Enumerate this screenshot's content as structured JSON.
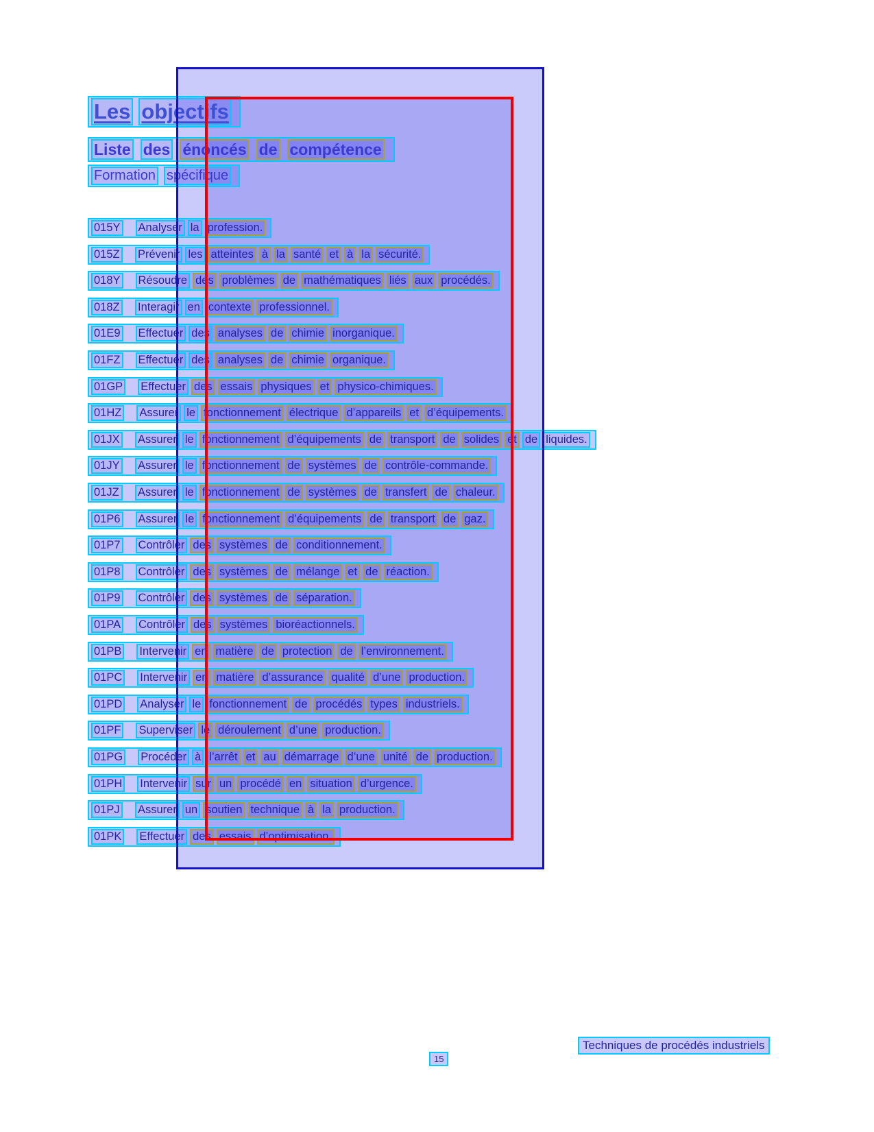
{
  "colors": {
    "page_bg": "#ffffff",
    "body_text": "#24249a",
    "title_text": "#3f4fd2",
    "heading_text": "#3a3ace",
    "footer_text": "#24249a",
    "blue_region_border": "#1111cc",
    "red_region_border": "#ee0000",
    "line_box_border": "#00ccff",
    "word_box_border": "#a6a235"
  },
  "title": {
    "text": "Les objectifs"
  },
  "headings": {
    "competences": "Liste des énoncés de compétence",
    "formation": "Formation spécifique"
  },
  "list": {
    "items": [
      {
        "code": "015Y",
        "text": "Analyser la profession."
      },
      {
        "code": "015Z",
        "text": "Prévenir les atteintes à la santé et à la sécurité."
      },
      {
        "code": "018Y",
        "text": "Résoudre des problèmes de mathématiques liés aux procédés."
      },
      {
        "code": "018Z",
        "text": "Interagir en contexte professionnel."
      },
      {
        "code": "01E9",
        "text": "Effectuer des analyses de chimie inorganique."
      },
      {
        "code": "01FZ",
        "text": "Effectuer des analyses de chimie organique."
      },
      {
        "code": "01GP",
        "text": "Effectuer des essais physiques et physico-chimiques."
      },
      {
        "code": "01HZ",
        "text": "Assurer le fonctionnement électrique d’appareils et d’équipements."
      },
      {
        "code": "01JX",
        "text": "Assurer le fonctionnement d’équipements de transport de solides et de liquides."
      },
      {
        "code": "01JY",
        "text": "Assurer le fonctionnement de systèmes de contrôle-commande."
      },
      {
        "code": "01JZ",
        "text": "Assurer le fonctionnement de systèmes de transfert de chaleur."
      },
      {
        "code": "01P6",
        "text": "Assurer le fonctionnement d’équipements de transport de gaz."
      },
      {
        "code": "01P7",
        "text": "Contrôler des systèmes de conditionnement."
      },
      {
        "code": "01P8",
        "text": "Contrôler des systèmes de mélange et de réaction."
      },
      {
        "code": "01P9",
        "text": "Contrôler des systèmes de séparation."
      },
      {
        "code": "01PA",
        "text": "Contrôler des systèmes bioréactionnels."
      },
      {
        "code": "01PB",
        "text": "Intervenir en matière de protection de l’environnement."
      },
      {
        "code": "01PC",
        "text": "Intervenir en matière d’assurance qualité d’une production."
      },
      {
        "code": "01PD",
        "text": "Analyser le fonctionnement de procédés types industriels."
      },
      {
        "code": "01PF",
        "text": "Superviser le déroulement d’une production."
      },
      {
        "code": "01PG",
        "text": "Procéder à l’arrêt et au démarrage d’une unité de production."
      },
      {
        "code": "01PH",
        "text": "Intervenir sur un procédé en situation d’urgence."
      },
      {
        "code": "01PJ",
        "text": "Assurer un soutien technique à la production."
      },
      {
        "code": "01PK",
        "text": "Effectuer des essais d’optimisation."
      }
    ]
  },
  "footer": {
    "program": "Techniques de procédés industriels",
    "page_number": "15"
  }
}
